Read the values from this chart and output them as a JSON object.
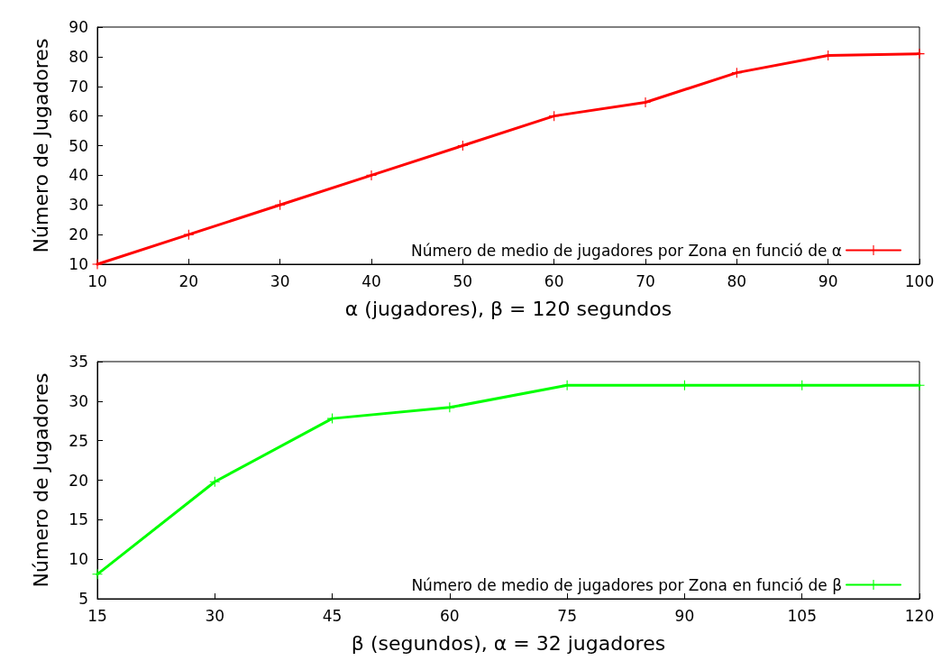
{
  "chart_data": [
    {
      "type": "line",
      "xlabel": "α (jugadores), β = 120 segundos",
      "ylabel": "Número de Jugadores",
      "x": [
        10,
        20,
        30,
        40,
        50,
        60,
        70,
        80,
        90,
        100
      ],
      "series": [
        {
          "name": "Número de medio de jugadores por Zona en funció de α",
          "color": "#ff0000",
          "values": [
            10,
            20,
            30,
            40,
            50,
            60,
            64.6,
            74.6,
            80.4,
            81
          ]
        }
      ],
      "xlim": [
        10,
        100
      ],
      "xticks": [
        10,
        20,
        30,
        40,
        50,
        60,
        70,
        80,
        90,
        100
      ],
      "ylim": [
        10,
        90
      ],
      "yticks": [
        10,
        20,
        30,
        40,
        50,
        60,
        70,
        80,
        90
      ],
      "grid": false,
      "legend": "bottom right",
      "marker": "cross",
      "line_style": "solid"
    },
    {
      "type": "line",
      "xlabel": "β (segundos), α = 32 jugadores",
      "ylabel": "Número de Jugadores",
      "x": [
        15,
        30,
        45,
        60,
        75,
        90,
        105,
        120
      ],
      "series": [
        {
          "name": "Número de medio de jugadores por Zona en funció de β",
          "color": "#00ff00",
          "values": [
            8.1,
            19.8,
            27.8,
            29.2,
            32,
            32,
            32,
            32
          ]
        }
      ],
      "xlim": [
        15,
        120
      ],
      "xticks": [
        15,
        30,
        45,
        60,
        75,
        90,
        105,
        120
      ],
      "ylim": [
        5,
        35
      ],
      "yticks": [
        5,
        10,
        15,
        20,
        25,
        30,
        35
      ],
      "grid": false,
      "legend": "bottom right",
      "marker": "cross",
      "line_style": "solid"
    }
  ]
}
